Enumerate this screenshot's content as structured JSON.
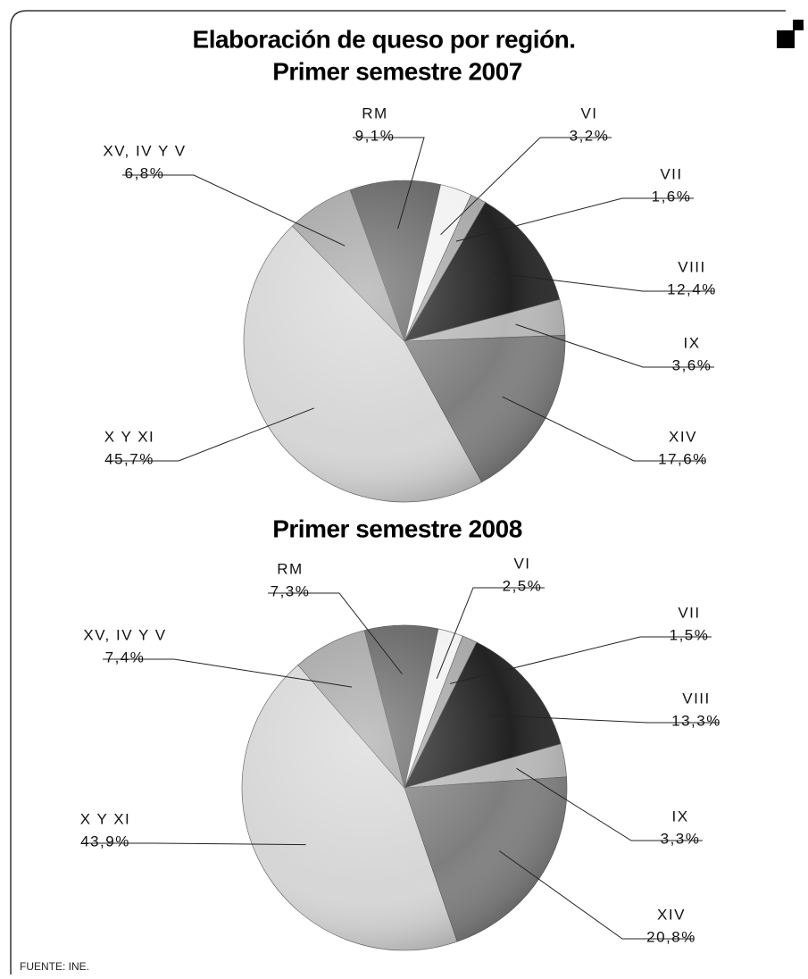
{
  "chart_data": [
    {
      "type": "pie",
      "title": "Elaboración de queso por región.",
      "subtitle": "Primer semestre 2007",
      "categories": [
        "VI",
        "VII",
        "VIII",
        "IX",
        "XIV",
        "X Y XI",
        "XV, IV Y V",
        "RM"
      ],
      "values": [
        3.2,
        1.6,
        12.4,
        3.6,
        17.6,
        45.7,
        6.8,
        9.1
      ],
      "value_labels": [
        "3,2%",
        "1,6%",
        "12,4%",
        "3,6%",
        "17,6%",
        "45,7%",
        "6,8%",
        "9,1%"
      ],
      "colors": [
        "#f2f2f2",
        "#a8a8a8",
        "#222222",
        "#b8b8b8",
        "#7e7e7e",
        "#d6d6d6",
        "#a4a4a4",
        "#636363"
      ]
    },
    {
      "type": "pie",
      "title": "Primer semestre 2008",
      "categories": [
        "VI",
        "VII",
        "VIII",
        "IX",
        "XIV",
        "X Y XI",
        "XV, IV Y V",
        "RM"
      ],
      "values": [
        2.5,
        1.5,
        13.3,
        3.3,
        20.8,
        43.9,
        7.4,
        7.3
      ],
      "value_labels": [
        "2,5%",
        "1,5%",
        "13,3%",
        "3,3%",
        "20,8%",
        "43,9%",
        "7,4%",
        "7,3%"
      ],
      "colors": [
        "#f2f2f2",
        "#a8a8a8",
        "#222222",
        "#b8b8b8",
        "#7e7e7e",
        "#d6d6d6",
        "#a4a4a4",
        "#636363"
      ]
    }
  ],
  "source": "FUENTE: INE."
}
